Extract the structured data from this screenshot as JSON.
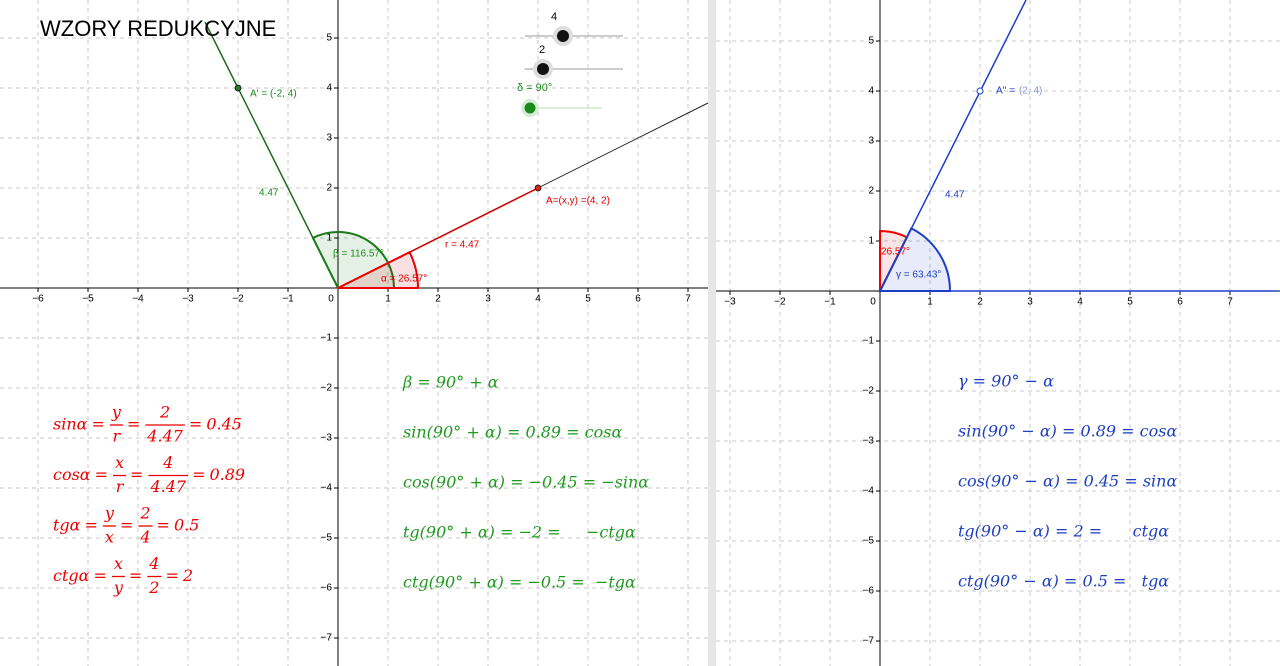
{
  "header": {
    "title": "WZORY REDUKCYJNE"
  },
  "sliders": [
    {
      "label": "4"
    },
    {
      "label": "2"
    },
    {
      "label": "δ = 90°"
    }
  ],
  "left_view": {
    "x_ticks": [
      {
        "value": -6,
        "label": "−6"
      },
      {
        "value": -5,
        "label": "−5"
      },
      {
        "value": -4,
        "label": "−4"
      },
      {
        "value": -3,
        "label": "−3"
      },
      {
        "value": -2,
        "label": "−2"
      },
      {
        "value": -1,
        "label": "−1"
      },
      0,
      1,
      2,
      3,
      4,
      5,
      6,
      7
    ],
    "y_ticks": [
      5,
      4,
      3,
      2,
      1,
      {
        "value": -1,
        "label": "−1"
      },
      {
        "value": -2,
        "label": "−2"
      },
      {
        "value": -3,
        "label": "−3"
      },
      {
        "value": -4,
        "label": "−4"
      },
      {
        "value": -5,
        "label": "−5"
      },
      {
        "value": -6,
        "label": "−6"
      },
      {
        "value": -7,
        "label": "−7"
      }
    ],
    "labels": {
      "point_a_prime": "A' = (-2, 4)",
      "point_a": "A=(x,y) =(4, 2)",
      "length_green": "4.47",
      "length_red": "r = 4.47",
      "beta": "β = 116.57°",
      "alpha": "α = 26.57°"
    }
  },
  "right_view": {
    "x_ticks": [
      {
        "value": -3,
        "label": "−3"
      },
      {
        "value": -2,
        "label": "−2"
      },
      {
        "value": -1,
        "label": "−1"
      },
      0,
      1,
      2,
      3,
      4,
      5,
      6,
      7
    ],
    "y_ticks": [
      5,
      4,
      3,
      2,
      1,
      {
        "value": -1,
        "label": "−1"
      },
      {
        "value": -2,
        "label": "−2"
      },
      {
        "value": -3,
        "label": "−3"
      },
      {
        "value": -4,
        "label": "−4"
      },
      {
        "value": -5,
        "label": "−5"
      },
      {
        "value": -6,
        "label": "−6"
      },
      {
        "value": -7,
        "label": "−7"
      }
    ],
    "labels": {
      "point_name": "A'' =",
      "point_coords": "(2, 4)",
      "length": "4.47",
      "angle_red": "26.57°",
      "gamma": "γ = 63.43°"
    }
  },
  "red_formulas": [
    {
      "name": "sinα",
      "fractions": [
        {
          "num": "y",
          "den": "r"
        },
        {
          "num": "2",
          "den": "4.47"
        }
      ],
      "result": "0.45"
    },
    {
      "name": "cosα",
      "fractions": [
        {
          "num": "x",
          "den": "r"
        },
        {
          "num": "4",
          "den": "4.47"
        }
      ],
      "result": "0.89"
    },
    {
      "name": "tgα",
      "fractions": [
        {
          "num": "y",
          "den": "x"
        },
        {
          "num": "2",
          "den": "4"
        }
      ],
      "result": "0.5"
    },
    {
      "name": "ctgα",
      "fractions": [
        {
          "num": "x",
          "den": "y"
        },
        {
          "num": "4",
          "den": "2"
        }
      ],
      "result": "2"
    }
  ],
  "green_formulas": [
    "β = 90° + α",
    "sin(90° + α) = 0.89 = cosα",
    "cos(90° + α) = −0.45 = −sinα",
    "tg(90° + α) = −2 =     −ctgα",
    "ctg(90° + α) = −0.5 =  −tgα"
  ],
  "blue_formulas": [
    "γ = 90° − α",
    "sin(90° − α) = 0.89 = cosα",
    "cos(90° − α) = 0.45 = sinα",
    "tg(90° − α) = 2 =      ctgα",
    "ctg(90° − α) = 0.5 =   tgα"
  ]
}
